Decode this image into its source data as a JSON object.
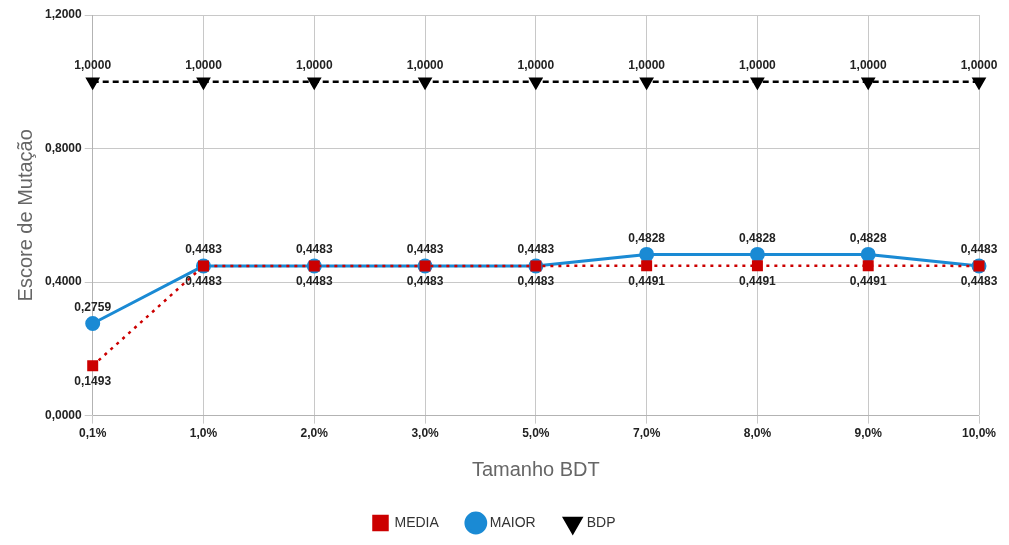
{
  "chart_data": {
    "type": "line",
    "xlabel": "Tamanho BDT",
    "ylabel": "Escore de Mutação",
    "categories": [
      "0,1%",
      "1,0%",
      "2,0%",
      "3,0%",
      "5,0%",
      "7,0%",
      "8,0%",
      "9,0%",
      "10,0%"
    ],
    "series": [
      {
        "name": "MEDIA",
        "color": "#cc0000",
        "line_style": "dotted",
        "marker": "square",
        "values": [
          0.1493,
          0.4483,
          0.4483,
          0.4483,
          0.4483,
          0.4491,
          0.4491,
          0.4491,
          0.4483
        ],
        "value_labels": [
          "0,1493",
          "0,4483",
          "0,4483",
          "0,4483",
          "0,4483",
          "0,4491",
          "0,4491",
          "0,4491",
          "0,4483"
        ]
      },
      {
        "name": "MAIOR",
        "color": "#1a8ad4",
        "line_style": "solid",
        "marker": "circle",
        "values": [
          0.2759,
          0.4483,
          0.4483,
          0.4483,
          0.4483,
          0.4828,
          0.4828,
          0.4828,
          0.4483
        ],
        "value_labels": [
          "0,2759",
          "0,4483",
          "0,4483",
          "0,4483",
          "0,4483",
          "0,4828",
          "0,4828",
          "0,4828",
          "0,4483"
        ]
      },
      {
        "name": "BDP",
        "color": "#000000",
        "line_style": "dashed",
        "marker": "triangle",
        "values": [
          1,
          1,
          1,
          1,
          1,
          1,
          1,
          1,
          1
        ],
        "value_labels": [
          "1,0000",
          "1,0000",
          "1,0000",
          "1,0000",
          "1,0000",
          "1,0000",
          "1,0000",
          "1,0000",
          "1,0000"
        ]
      }
    ],
    "ylim": [
      0,
      1.2
    ],
    "yticks": [
      {
        "value": 0,
        "label": "0,0000"
      },
      {
        "value": 0.4,
        "label": "0,4000"
      },
      {
        "value": 0.8,
        "label": "0,8000"
      },
      {
        "value": 1.2,
        "label": "1,2000"
      }
    ],
    "grid": true,
    "legend": "bottom"
  }
}
